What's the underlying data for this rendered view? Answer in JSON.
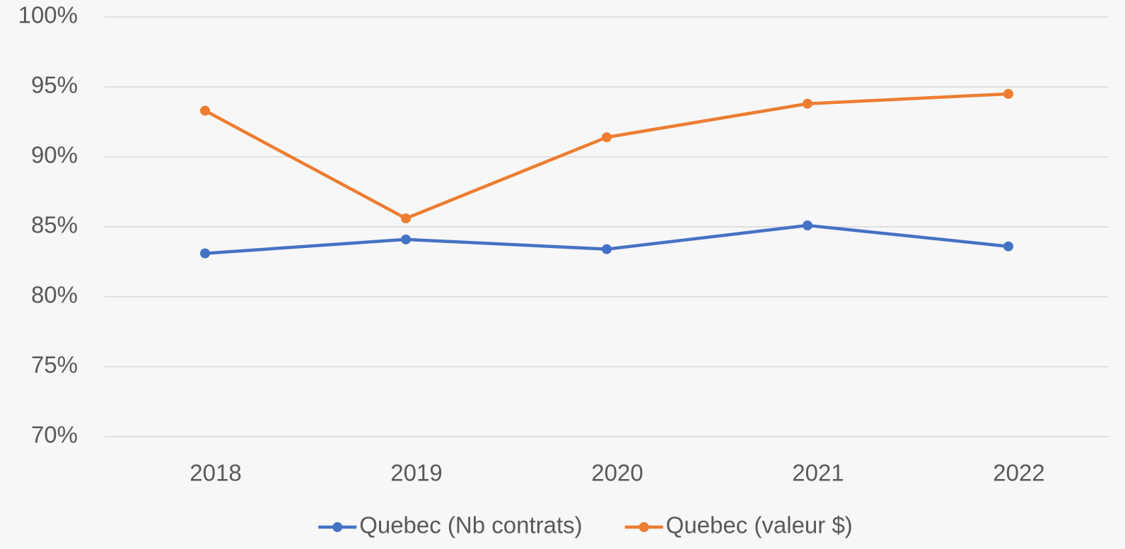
{
  "chart_data": {
    "type": "line",
    "categories": [
      "2018",
      "2019",
      "2020",
      "2021",
      "2022"
    ],
    "series": [
      {
        "name": "Quebec (Nb contrats)",
        "color": "#4472c4",
        "values": [
          83.1,
          84.1,
          83.4,
          85.1,
          83.6
        ]
      },
      {
        "name": "Quebec (valeur $)",
        "color": "#ed7d31",
        "values": [
          93.3,
          85.6,
          91.4,
          93.8,
          94.5
        ]
      }
    ],
    "ylim": [
      70,
      100
    ],
    "yticks": [
      {
        "value": 70,
        "label": "70%"
      },
      {
        "value": 75,
        "label": "75%"
      },
      {
        "value": 80,
        "label": "80%"
      },
      {
        "value": 85,
        "label": "85%"
      },
      {
        "value": 90,
        "label": "90%"
      },
      {
        "value": 95,
        "label": "95%"
      },
      {
        "value": 100,
        "label": "100%"
      }
    ],
    "grid": true,
    "legend": "bottom"
  }
}
